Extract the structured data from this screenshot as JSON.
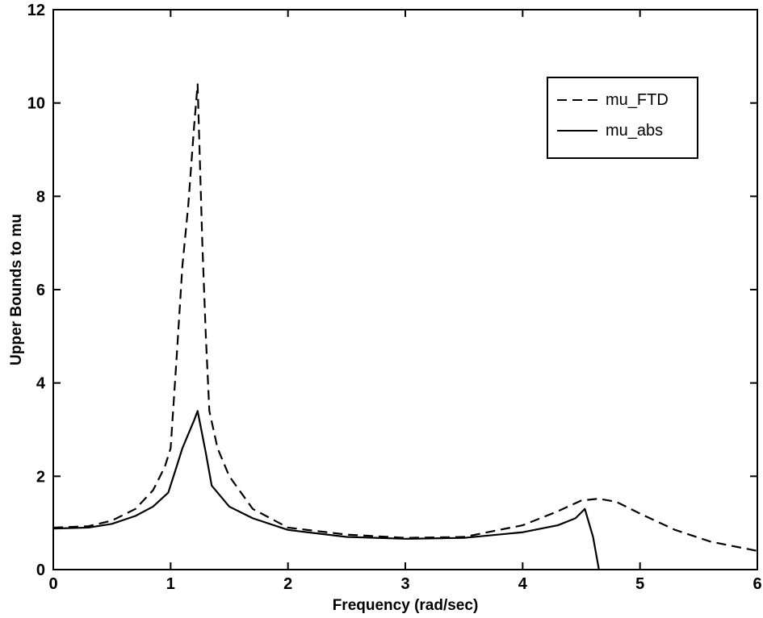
{
  "chart_data": {
    "type": "line",
    "xlabel": "Frequency (rad/sec)",
    "ylabel": "Upper Bounds to mu",
    "xlim": [
      0,
      6
    ],
    "ylim": [
      0,
      12
    ],
    "xticks": [
      0,
      1,
      2,
      3,
      4,
      5,
      6
    ],
    "yticks": [
      0,
      2,
      4,
      6,
      8,
      10,
      12
    ],
    "grid": false,
    "legend": "top-right",
    "series": [
      {
        "name": "mu_FTD",
        "style": "dashed",
        "color": "#000000",
        "x": [
          0,
          0.3,
          0.5,
          0.7,
          0.85,
          0.95,
          1.0,
          1.05,
          1.1,
          1.15,
          1.2,
          1.23,
          1.27,
          1.3,
          1.33,
          1.4,
          1.5,
          1.7,
          2.0,
          2.5,
          3.0,
          3.5,
          4.0,
          4.3,
          4.5,
          4.65,
          4.8,
          5.0,
          5.3,
          5.6,
          5.9,
          6.0
        ],
        "y": [
          0.9,
          0.93,
          1.05,
          1.3,
          1.7,
          2.2,
          2.6,
          4.5,
          6.5,
          7.8,
          9.5,
          10.4,
          7.0,
          5.0,
          3.4,
          2.6,
          2.0,
          1.3,
          0.9,
          0.75,
          0.68,
          0.7,
          0.95,
          1.25,
          1.48,
          1.52,
          1.45,
          1.2,
          0.85,
          0.6,
          0.45,
          0.4
        ]
      },
      {
        "name": "mu_abs",
        "style": "solid",
        "color": "#000000",
        "x": [
          0,
          0.3,
          0.5,
          0.7,
          0.85,
          0.98,
          1.05,
          1.1,
          1.15,
          1.2,
          1.23,
          1.3,
          1.35,
          1.5,
          1.7,
          2.0,
          2.5,
          3.0,
          3.5,
          4.0,
          4.3,
          4.45,
          4.53,
          4.6,
          4.65
        ],
        "y": [
          0.88,
          0.9,
          0.98,
          1.15,
          1.35,
          1.65,
          2.2,
          2.6,
          2.9,
          3.2,
          3.4,
          2.5,
          1.8,
          1.35,
          1.1,
          0.85,
          0.7,
          0.66,
          0.68,
          0.8,
          0.95,
          1.1,
          1.3,
          0.7,
          0.0
        ]
      }
    ]
  }
}
